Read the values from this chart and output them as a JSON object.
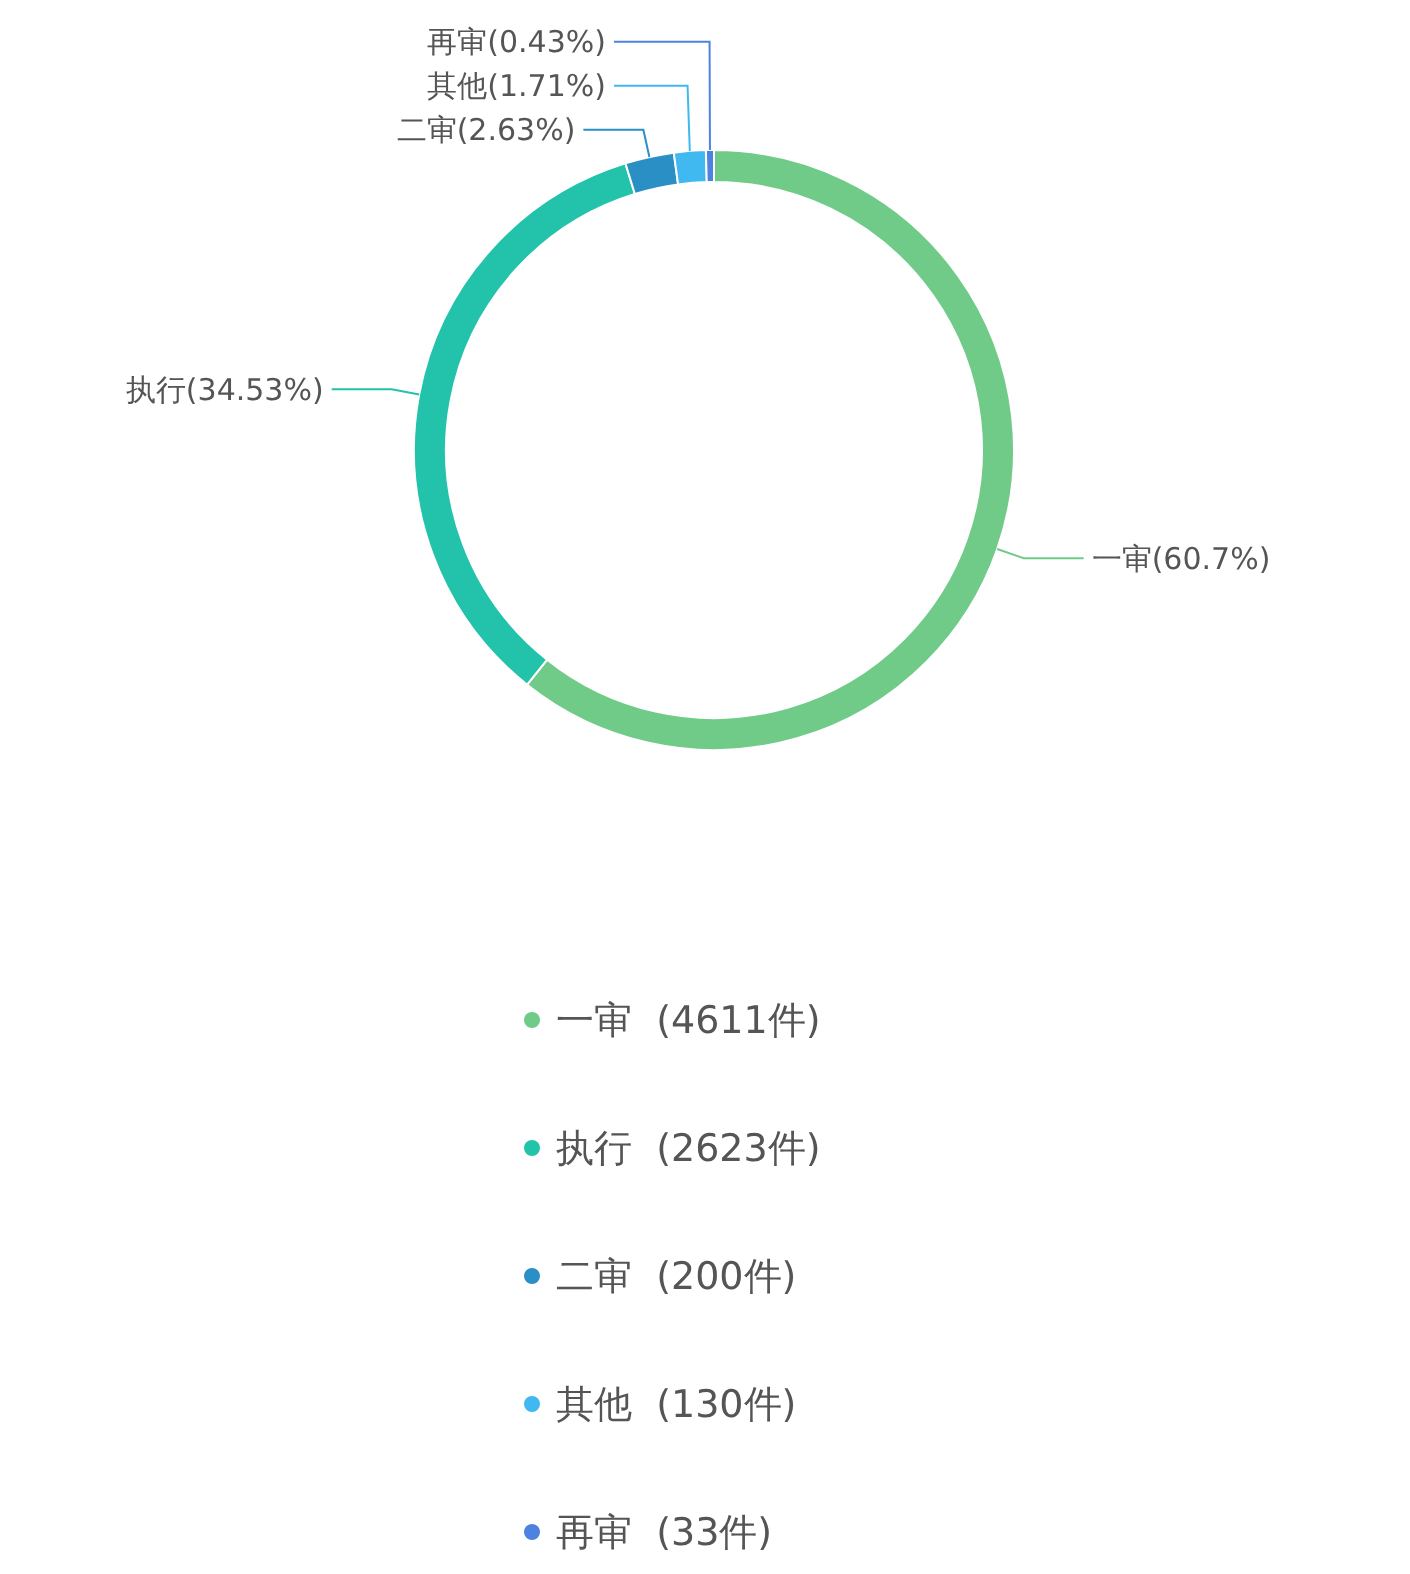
{
  "chart_data": {
    "type": "donut",
    "categories": [
      "一审  (4611件)",
      "执行  (2623件)",
      "二审  (200件)",
      "其他  (130件)",
      "再审  (33件)"
    ],
    "values": [
      60.7,
      34.53,
      2.63,
      1.71,
      0.43
    ],
    "value_labels": [
      "一审(60.7%)",
      "执行(34.53%)",
      "二审(2.63%)",
      "其他(1.71%)",
      "再审(0.43%)"
    ],
    "colors": [
      "#70cb88",
      "#22c3aa",
      "#2a8fc4",
      "#3fb9f0",
      "#4d82e0"
    ],
    "legend": "bottom"
  }
}
